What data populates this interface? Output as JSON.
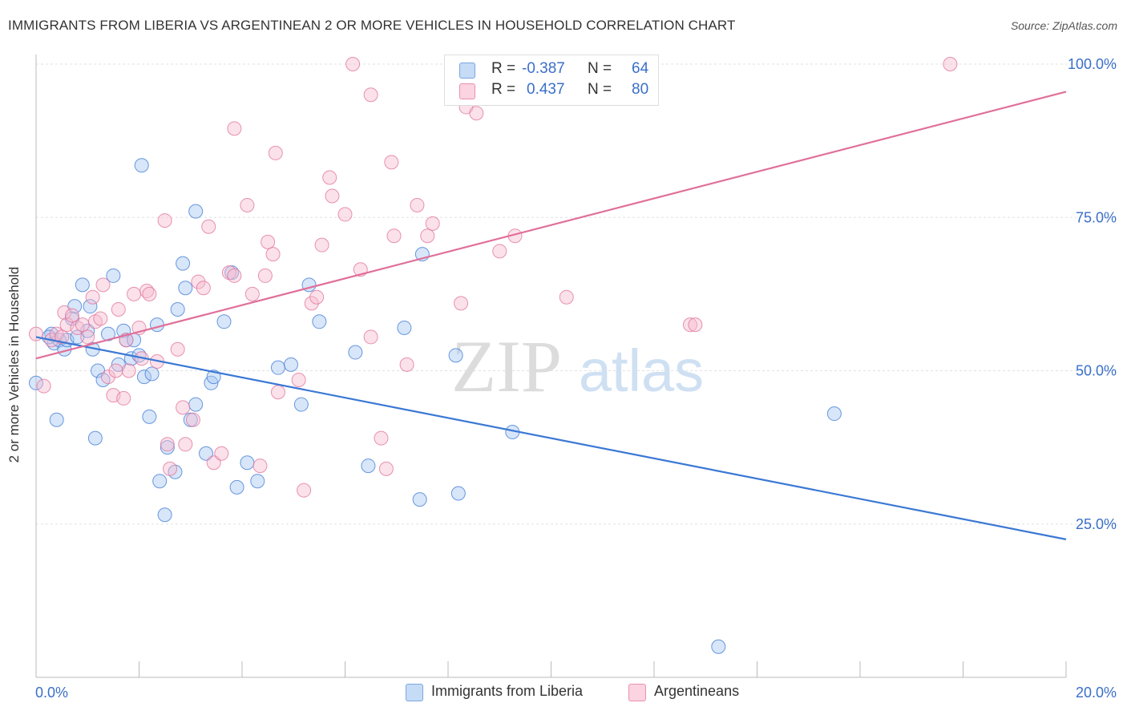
{
  "title": "IMMIGRANTS FROM LIBERIA VS ARGENTINEAN 2 OR MORE VEHICLES IN HOUSEHOLD CORRELATION CHART",
  "source": "Source: ZipAtlas.com",
  "watermark": {
    "zip": "ZIP",
    "atlas": "atlas"
  },
  "legend_stats": [
    {
      "r_label": "R =",
      "r_value": "-0.387",
      "n_label": "N =",
      "n_value": "64",
      "color": "#a9c8f2"
    },
    {
      "r_label": "R =",
      "r_value": "0.437",
      "n_label": "N =",
      "n_value": "80",
      "color": "#f6bcd0"
    }
  ],
  "chart_data": {
    "type": "scatter",
    "title": "IMMIGRANTS FROM LIBERIA VS ARGENTINEAN 2 OR MORE VEHICLES IN HOUSEHOLD CORRELATION CHART",
    "xlabel": "",
    "ylabel": "2 or more Vehicles in Household",
    "xlim": [
      0,
      20
    ],
    "ylim": [
      0,
      102
    ],
    "x_tick_labels": [
      "0.0%",
      "20.0%"
    ],
    "y_tick_labels": [
      "25.0%",
      "50.0%",
      "75.0%",
      "100.0%"
    ],
    "y_ticks": [
      25,
      50,
      75,
      100
    ],
    "x_minor_ticks": [
      0,
      2,
      4,
      6,
      8,
      10,
      12,
      14,
      16,
      18,
      20
    ],
    "grid": true,
    "legend_position": "bottom",
    "series": [
      {
        "name": "Immigrants from Liberia",
        "color": "#3a78d4",
        "fill": "#a9c8f2",
        "trend": {
          "x": [
            0,
            20
          ],
          "y": [
            55.5,
            22.5
          ]
        },
        "points": [
          [
            0.3,
            56
          ],
          [
            0.35,
            54.5
          ],
          [
            0.45,
            55
          ],
          [
            0.55,
            53.5
          ],
          [
            0.6,
            55
          ],
          [
            0.7,
            58.5
          ],
          [
            0.75,
            60.5
          ],
          [
            0.8,
            55.5
          ],
          [
            0.9,
            64
          ],
          [
            1.0,
            56.5
          ],
          [
            1.05,
            60.5
          ],
          [
            1.1,
            53.5
          ],
          [
            1.2,
            50
          ],
          [
            1.3,
            48.5
          ],
          [
            1.4,
            56
          ],
          [
            1.5,
            65.5
          ],
          [
            1.6,
            51
          ],
          [
            1.7,
            56.5
          ],
          [
            1.75,
            55
          ],
          [
            1.85,
            52
          ],
          [
            1.9,
            55
          ],
          [
            2.0,
            52.5
          ],
          [
            2.05,
            83.5
          ],
          [
            2.1,
            49
          ],
          [
            2.2,
            42.5
          ],
          [
            2.25,
            49.5
          ],
          [
            2.35,
            57.5
          ],
          [
            2.4,
            32
          ],
          [
            2.5,
            26.5
          ],
          [
            2.55,
            37.5
          ],
          [
            2.7,
            33.5
          ],
          [
            2.75,
            60
          ],
          [
            2.85,
            67.5
          ],
          [
            2.9,
            63.5
          ],
          [
            3.0,
            42
          ],
          [
            3.1,
            44.5
          ],
          [
            3.1,
            76
          ],
          [
            3.3,
            36.5
          ],
          [
            3.4,
            48
          ],
          [
            3.45,
            49
          ],
          [
            3.65,
            58
          ],
          [
            3.8,
            66
          ],
          [
            3.9,
            31
          ],
          [
            4.1,
            35
          ],
          [
            4.3,
            32
          ],
          [
            4.7,
            50.5
          ],
          [
            4.95,
            51
          ],
          [
            5.15,
            44.5
          ],
          [
            5.3,
            64
          ],
          [
            5.5,
            58
          ],
          [
            6.2,
            53
          ],
          [
            6.45,
            34.5
          ],
          [
            7.15,
            57
          ],
          [
            7.45,
            29
          ],
          [
            7.5,
            69
          ],
          [
            8.15,
            52.5
          ],
          [
            8.2,
            30
          ],
          [
            9.25,
            40
          ],
          [
            13.25,
            5
          ],
          [
            15.5,
            43
          ],
          [
            0.0,
            48
          ],
          [
            0.25,
            55.5
          ],
          [
            0.4,
            42
          ],
          [
            1.15,
            39
          ]
        ]
      },
      {
        "name": "Argentineans",
        "color": "#e0709a",
        "fill": "#f6bcd0",
        "trend": {
          "x": [
            0,
            20
          ],
          "y": [
            52,
            95.5
          ]
        },
        "points": [
          [
            0.0,
            56
          ],
          [
            0.15,
            47.5
          ],
          [
            0.3,
            55
          ],
          [
            0.4,
            56
          ],
          [
            0.5,
            55.5
          ],
          [
            0.55,
            59.5
          ],
          [
            0.6,
            57.5
          ],
          [
            0.7,
            59
          ],
          [
            0.8,
            57
          ],
          [
            0.9,
            57.5
          ],
          [
            1.0,
            55.5
          ],
          [
            1.1,
            62
          ],
          [
            1.15,
            58
          ],
          [
            1.25,
            58.5
          ],
          [
            1.3,
            64
          ],
          [
            1.4,
            49
          ],
          [
            1.5,
            46
          ],
          [
            1.55,
            50
          ],
          [
            1.6,
            60
          ],
          [
            1.7,
            45.5
          ],
          [
            1.75,
            55
          ],
          [
            1.8,
            50
          ],
          [
            1.9,
            62.5
          ],
          [
            2.0,
            57
          ],
          [
            2.05,
            52
          ],
          [
            2.15,
            63
          ],
          [
            2.2,
            62.5
          ],
          [
            2.35,
            51.5
          ],
          [
            2.5,
            74.5
          ],
          [
            2.55,
            38
          ],
          [
            2.6,
            34
          ],
          [
            2.75,
            53.5
          ],
          [
            2.85,
            44
          ],
          [
            2.9,
            38
          ],
          [
            3.05,
            42
          ],
          [
            3.15,
            64.5
          ],
          [
            3.25,
            63.5
          ],
          [
            3.35,
            73.5
          ],
          [
            3.45,
            35
          ],
          [
            3.6,
            36.5
          ],
          [
            3.75,
            66
          ],
          [
            3.85,
            65.5
          ],
          [
            3.85,
            89.5
          ],
          [
            4.1,
            77
          ],
          [
            4.2,
            62.5
          ],
          [
            4.35,
            34.5
          ],
          [
            4.45,
            65.5
          ],
          [
            4.5,
            71
          ],
          [
            4.6,
            69
          ],
          [
            4.65,
            85.5
          ],
          [
            4.7,
            46.5
          ],
          [
            5.1,
            48.5
          ],
          [
            5.2,
            30.5
          ],
          [
            5.35,
            61
          ],
          [
            5.45,
            62
          ],
          [
            5.55,
            70.5
          ],
          [
            5.7,
            81.5
          ],
          [
            5.75,
            78.5
          ],
          [
            6.0,
            75.5
          ],
          [
            6.15,
            100
          ],
          [
            6.3,
            66.5
          ],
          [
            6.5,
            95
          ],
          [
            6.5,
            55.5
          ],
          [
            6.7,
            39
          ],
          [
            6.8,
            34
          ],
          [
            6.9,
            84
          ],
          [
            6.95,
            72
          ],
          [
            7.2,
            51
          ],
          [
            7.4,
            77
          ],
          [
            7.6,
            72
          ],
          [
            7.7,
            74
          ],
          [
            8.25,
            61
          ],
          [
            8.35,
            93
          ],
          [
            8.55,
            92
          ],
          [
            9.0,
            69.5
          ],
          [
            9.3,
            72
          ],
          [
            10.3,
            62
          ],
          [
            12.7,
            57.5
          ],
          [
            12.8,
            57.5
          ],
          [
            17.75,
            100
          ]
        ]
      }
    ]
  }
}
